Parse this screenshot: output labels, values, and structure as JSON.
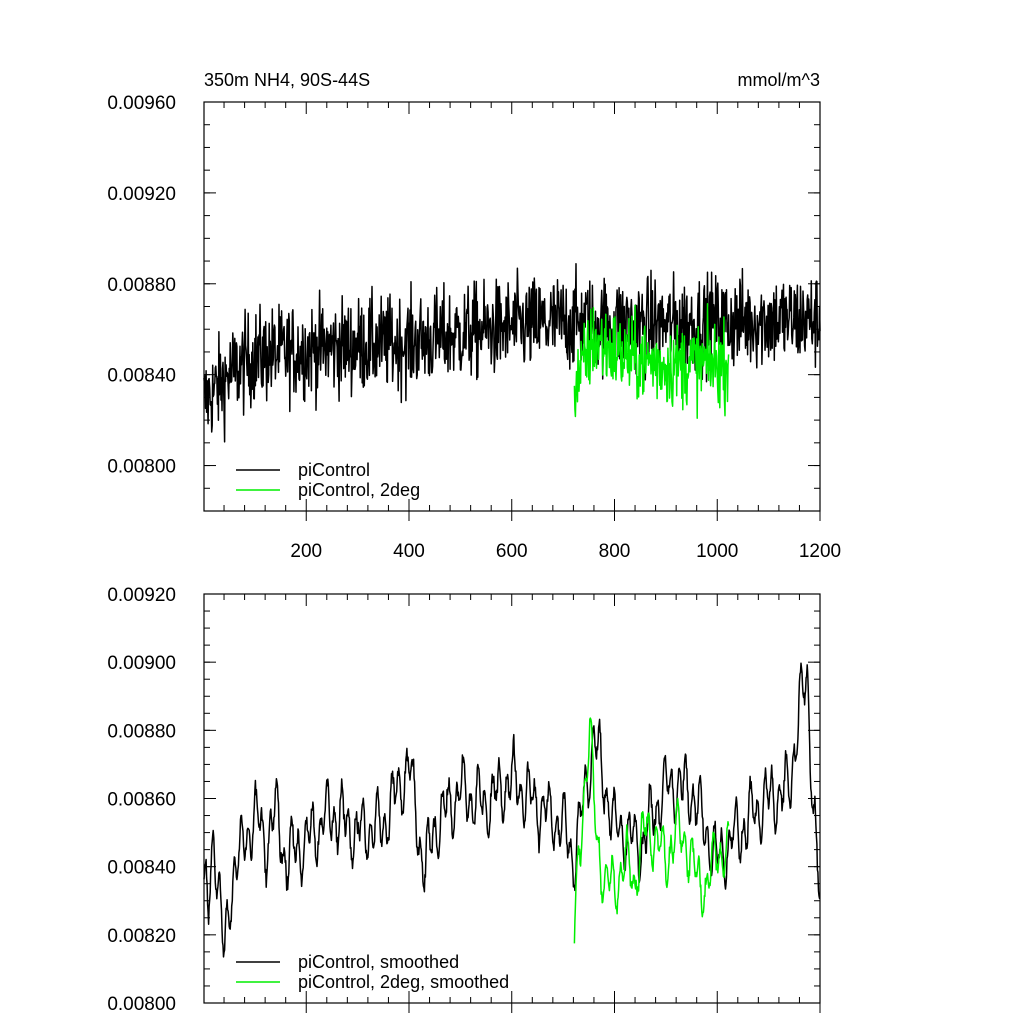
{
  "colors": {
    "black": "#000000",
    "green": "#00ee00",
    "background": "#ffffff"
  },
  "chart_data": [
    {
      "type": "line",
      "title": "350m NH4, 90S-44S",
      "units": "mmol/m^3",
      "xlim": [
        1,
        1200
      ],
      "ylim": [
        0.0078,
        0.0096
      ],
      "y_ticks": [
        0.008,
        0.0084,
        0.0088,
        0.0092,
        0.0096
      ],
      "y_tick_labels": [
        "0.00800",
        "0.00840",
        "0.00880",
        "0.00920",
        "0.00960"
      ],
      "x_ticks": [
        200,
        400,
        600,
        800,
        1000,
        1200
      ],
      "x_tick_labels": [
        "200",
        "400",
        "600",
        "800",
        "1000",
        "1200"
      ],
      "legend_placement": "bottom-left",
      "series": [
        {
          "name": "piControl",
          "color": "#000000",
          "x_start": 1,
          "x_end": 1200,
          "mean": [
            [
              1,
              0.00828
            ],
            [
              50,
              0.0084
            ],
            [
              100,
              0.00848
            ],
            [
              200,
              0.00851
            ],
            [
              300,
              0.00853
            ],
            [
              400,
              0.00854
            ],
            [
              500,
              0.00858
            ],
            [
              600,
              0.00861
            ],
            [
              700,
              0.00863
            ],
            [
              800,
              0.00862
            ],
            [
              900,
              0.00862
            ],
            [
              1000,
              0.00863
            ],
            [
              1100,
              0.00864
            ],
            [
              1200,
              0.00864
            ]
          ],
          "amplitude": 0.00023
        },
        {
          "name": "piControl, 2deg",
          "color": "#00ee00",
          "x_start": 722,
          "x_end": 1022,
          "mean": [
            [
              722,
              0.00835
            ],
            [
              760,
              0.00855
            ],
            [
              820,
              0.00848
            ],
            [
              900,
              0.00844
            ],
            [
              1000,
              0.00845
            ],
            [
              1022,
              0.00845
            ]
          ],
          "amplitude": 0.0002
        }
      ]
    },
    {
      "type": "line",
      "xlim": [
        1,
        1200
      ],
      "ylim": [
        0.008,
        0.0092
      ],
      "y_ticks": [
        0.008,
        0.0082,
        0.0084,
        0.0086,
        0.0088,
        0.009,
        0.0092
      ],
      "y_tick_labels": [
        "0.00800",
        "0.00820",
        "0.00840",
        "0.00860",
        "0.00880",
        "0.00900",
        "0.00920"
      ],
      "x_ticks": [
        200,
        400,
        600,
        800,
        1000,
        1200
      ],
      "legend_placement": "bottom-left",
      "series": [
        {
          "name": "piControl, smoothed",
          "color": "#000000",
          "x_start": 1,
          "x_end": 1200,
          "points": [
            [
              1,
              0.00834
            ],
            [
              10,
              0.00826
            ],
            [
              20,
              0.0085
            ],
            [
              30,
              0.00836
            ],
            [
              40,
              0.00812
            ],
            [
              50,
              0.00826
            ],
            [
              60,
              0.00842
            ],
            [
              80,
              0.00846
            ],
            [
              100,
              0.00856
            ],
            [
              120,
              0.00846
            ],
            [
              140,
              0.00858
            ],
            [
              160,
              0.00842
            ],
            [
              200,
              0.00848
            ],
            [
              250,
              0.00856
            ],
            [
              300,
              0.0085
            ],
            [
              350,
              0.00852
            ],
            [
              400,
              0.0087
            ],
            [
              430,
              0.00838
            ],
            [
              450,
              0.00852
            ],
            [
              500,
              0.00862
            ],
            [
              550,
              0.00858
            ],
            [
              600,
              0.00866
            ],
            [
              650,
              0.00858
            ],
            [
              700,
              0.00852
            ],
            [
              722,
              0.00842
            ],
            [
              760,
              0.00878
            ],
            [
              800,
              0.00852
            ],
            [
              850,
              0.00846
            ],
            [
              900,
              0.00864
            ],
            [
              950,
              0.00862
            ],
            [
              1000,
              0.00842
            ],
            [
              1050,
              0.00852
            ],
            [
              1100,
              0.0086
            ],
            [
              1140,
              0.00862
            ],
            [
              1160,
              0.00888
            ],
            [
              1175,
              0.00894
            ],
            [
              1190,
              0.00852
            ],
            [
              1200,
              0.00828
            ]
          ],
          "noise": 0.0001
        },
        {
          "name": "piControl, 2deg, smoothed",
          "color": "#00ee00",
          "x_start": 722,
          "x_end": 1022,
          "points": [
            [
              722,
              0.00818
            ],
            [
              730,
              0.0084
            ],
            [
              745,
              0.0087
            ],
            [
              752,
              0.0088
            ],
            [
              765,
              0.00848
            ],
            [
              780,
              0.00836
            ],
            [
              800,
              0.00834
            ],
            [
              820,
              0.00842
            ],
            [
              840,
              0.00836
            ],
            [
              860,
              0.00852
            ],
            [
              880,
              0.00848
            ],
            [
              900,
              0.00842
            ],
            [
              920,
              0.0085
            ],
            [
              940,
              0.00848
            ],
            [
              960,
              0.00836
            ],
            [
              980,
              0.00834
            ],
            [
              1000,
              0.00846
            ],
            [
              1022,
              0.00842
            ]
          ],
          "noise": 9e-05
        }
      ]
    }
  ]
}
